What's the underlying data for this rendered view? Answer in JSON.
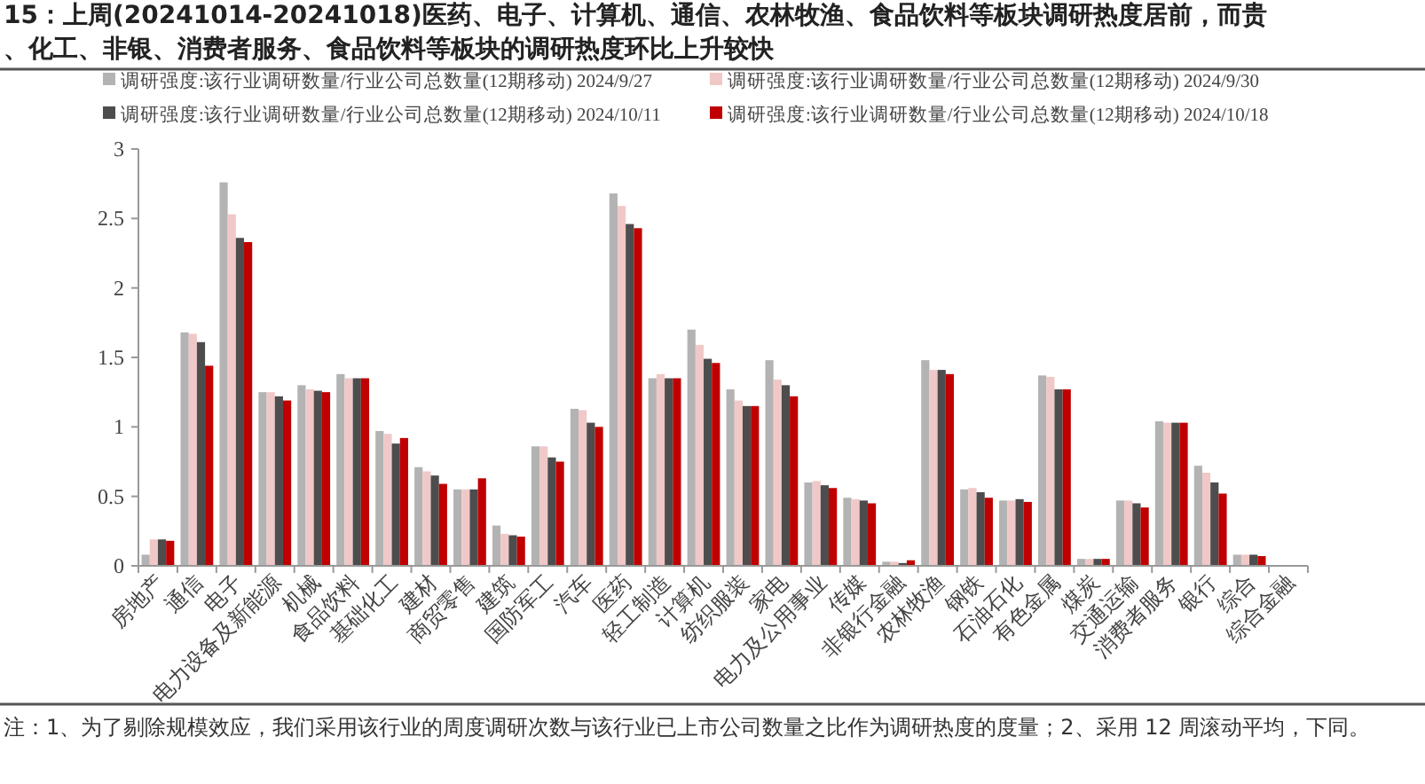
{
  "chart_data": {
    "type": "bar",
    "title": "15：上周(20241014-20241018)医药、电子、计算机、通信、农林牧渔、食品饮料等板块调研热度居前，而贵",
    "subtitle": "、化工、非银、消费者服务、食品饮料等板块的调研热度环比上升较快",
    "categories": [
      "房地产",
      "通信",
      "电子",
      "电力设备及新能源",
      "机械",
      "食品饮料",
      "基础化工",
      "建材",
      "商贸零售",
      "建筑",
      "国防军工",
      "汽车",
      "医药",
      "轻工制造",
      "计算机",
      "纺织服装",
      "家电",
      "电力及公用事业",
      "传媒",
      "非银行金融",
      "农林牧渔",
      "钢铁",
      "石油石化",
      "有色金属",
      "煤炭",
      "交通运输",
      "消费者服务",
      "银行",
      "综合",
      "综合金融"
    ],
    "series": [
      {
        "name": "调研强度:该行业调研数量/行业公司总数量(12期移动) 2024/9/27",
        "color": "#b3b3b3",
        "values": [
          0.08,
          1.68,
          2.76,
          1.25,
          1.3,
          1.38,
          0.97,
          0.71,
          0.55,
          0.29,
          0.86,
          1.13,
          2.68,
          1.35,
          1.7,
          1.27,
          1.48,
          0.6,
          0.49,
          0.03,
          1.48,
          0.55,
          0.47,
          1.37,
          0.05,
          0.47,
          1.04,
          0.72,
          0.08,
          null
        ]
      },
      {
        "name": "调研强度:该行业调研数量/行业公司总数量(12期移动) 2024/9/30",
        "color": "#f0c8c8",
        "values": [
          0.19,
          1.67,
          2.53,
          1.25,
          1.27,
          1.35,
          0.95,
          0.68,
          0.55,
          0.23,
          0.86,
          1.12,
          2.59,
          1.38,
          1.59,
          1.19,
          1.34,
          0.61,
          0.48,
          0.03,
          1.41,
          0.56,
          0.47,
          1.36,
          0.05,
          0.47,
          1.03,
          0.67,
          0.08,
          null
        ]
      },
      {
        "name": "调研强度:该行业调研数量/行业公司总数量(12期移动) 2024/10/11",
        "color": "#4d4d4d",
        "values": [
          0.19,
          1.61,
          2.36,
          1.22,
          1.26,
          1.35,
          0.88,
          0.65,
          0.55,
          0.22,
          0.78,
          1.03,
          2.46,
          1.35,
          1.49,
          1.15,
          1.3,
          0.58,
          0.47,
          0.02,
          1.41,
          0.53,
          0.48,
          1.27,
          0.05,
          0.45,
          1.03,
          0.6,
          0.08,
          null
        ]
      },
      {
        "name": "调研强度:该行业调研数量/行业公司总数量(12期移动) 2024/10/18",
        "color": "#c00000",
        "values": [
          0.18,
          1.44,
          2.33,
          1.19,
          1.25,
          1.35,
          0.92,
          0.59,
          0.63,
          0.21,
          0.75,
          1.0,
          2.43,
          1.35,
          1.46,
          1.15,
          1.22,
          0.56,
          0.45,
          0.04,
          1.38,
          0.49,
          0.46,
          1.27,
          0.05,
          0.42,
          1.03,
          0.52,
          0.07,
          null
        ]
      }
    ],
    "ylim": [
      0,
      3
    ],
    "yticks": [
      0,
      0.5,
      1,
      1.5,
      2,
      2.5,
      3
    ],
    "grid": false,
    "legend": "top",
    "annotations": [
      "注：1、为了剔除规模效应，我们采用该行业的周度调研次数与该行业已上市公司数量之比作为调研热度的度量；2、采用 12 周滚动平均，下同。"
    ]
  }
}
